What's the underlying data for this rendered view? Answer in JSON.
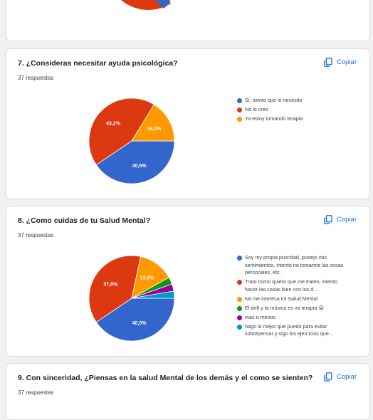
{
  "q7": {
    "title": "7. ¿Consideras necesitar ayuda psicológica?",
    "responses": "37 respuestas",
    "copy_label": "Copiar",
    "legend": [
      {
        "label": "Sí, siento que lo necesito",
        "color": "#3366cc"
      },
      {
        "label": "No lo creo",
        "color": "#dc3912"
      },
      {
        "label": "Ya estoy tomando terapia",
        "color": "#ff9900"
      }
    ]
  },
  "q8": {
    "title": "8. ¿Como cuidas de tu Salud Mental?",
    "responses": "37 respuestas",
    "copy_label": "Copiar",
    "legend": [
      {
        "label": "Soy my propia prioridad, protejo mis sentimientos, intento no tomarme las cosas personales, etc.",
        "color": "#3366cc"
      },
      {
        "label": "Trato como quiero que me traten, intento hacer las cosas bien con los d…",
        "color": "#dc3912"
      },
      {
        "label": "No me interesa mi Salud Mental",
        "color": "#ff9900"
      },
      {
        "label": "El drift y la música es mi terapia 😜",
        "color": "#109618"
      },
      {
        "label": "mas o menos",
        "color": "#990099"
      },
      {
        "label": "hago lo mejor que puedo para evitar sobrepensar y sigo los ejercicios que…",
        "color": "#0099c6"
      }
    ]
  },
  "q9": {
    "title": "9. Con sinceridad, ¿Piensas en la salud Mental de los demás y el como se sienten?",
    "responses": "37 respuestas",
    "copy_label": "Copiar"
  },
  "chart_data": [
    {
      "type": "pie",
      "title": "7. ¿Consideras necesitar ayuda psicológica?",
      "categories": [
        "Sí, siento que lo necesito",
        "No lo creo",
        "Ya estoy tomando terapia"
      ],
      "values": [
        40.5,
        43.2,
        16.2
      ],
      "labels": [
        "40,5%",
        "43,2%",
        "16,2%"
      ],
      "colors": [
        "#3366cc",
        "#dc3912",
        "#ff9900"
      ],
      "legend": "right"
    },
    {
      "type": "pie",
      "title": "8. ¿Como cuidas de tu Salud Mental?",
      "categories": [
        "Soy my propia prioridad, protejo mis sentimientos, intento no tomarme las cosas personales, etc.",
        "Trato como quiero que me traten, intento hacer las cosas bien con los d…",
        "No me interesa mi Salud Mental",
        "El drift y la música es mi terapia 😜",
        "mas o menos",
        "hago lo mejor que puedo para evitar sobrepensar y sigo los ejercicios que…"
      ],
      "values": [
        40.5,
        37.8,
        13.5,
        2.7,
        2.7,
        2.7
      ],
      "labels": [
        "40,5%",
        "37,8%",
        "13,5%",
        "",
        "",
        ""
      ],
      "colors": [
        "#3366cc",
        "#dc3912",
        "#ff9900",
        "#109618",
        "#990099",
        "#0099c6"
      ],
      "legend": "right"
    }
  ]
}
